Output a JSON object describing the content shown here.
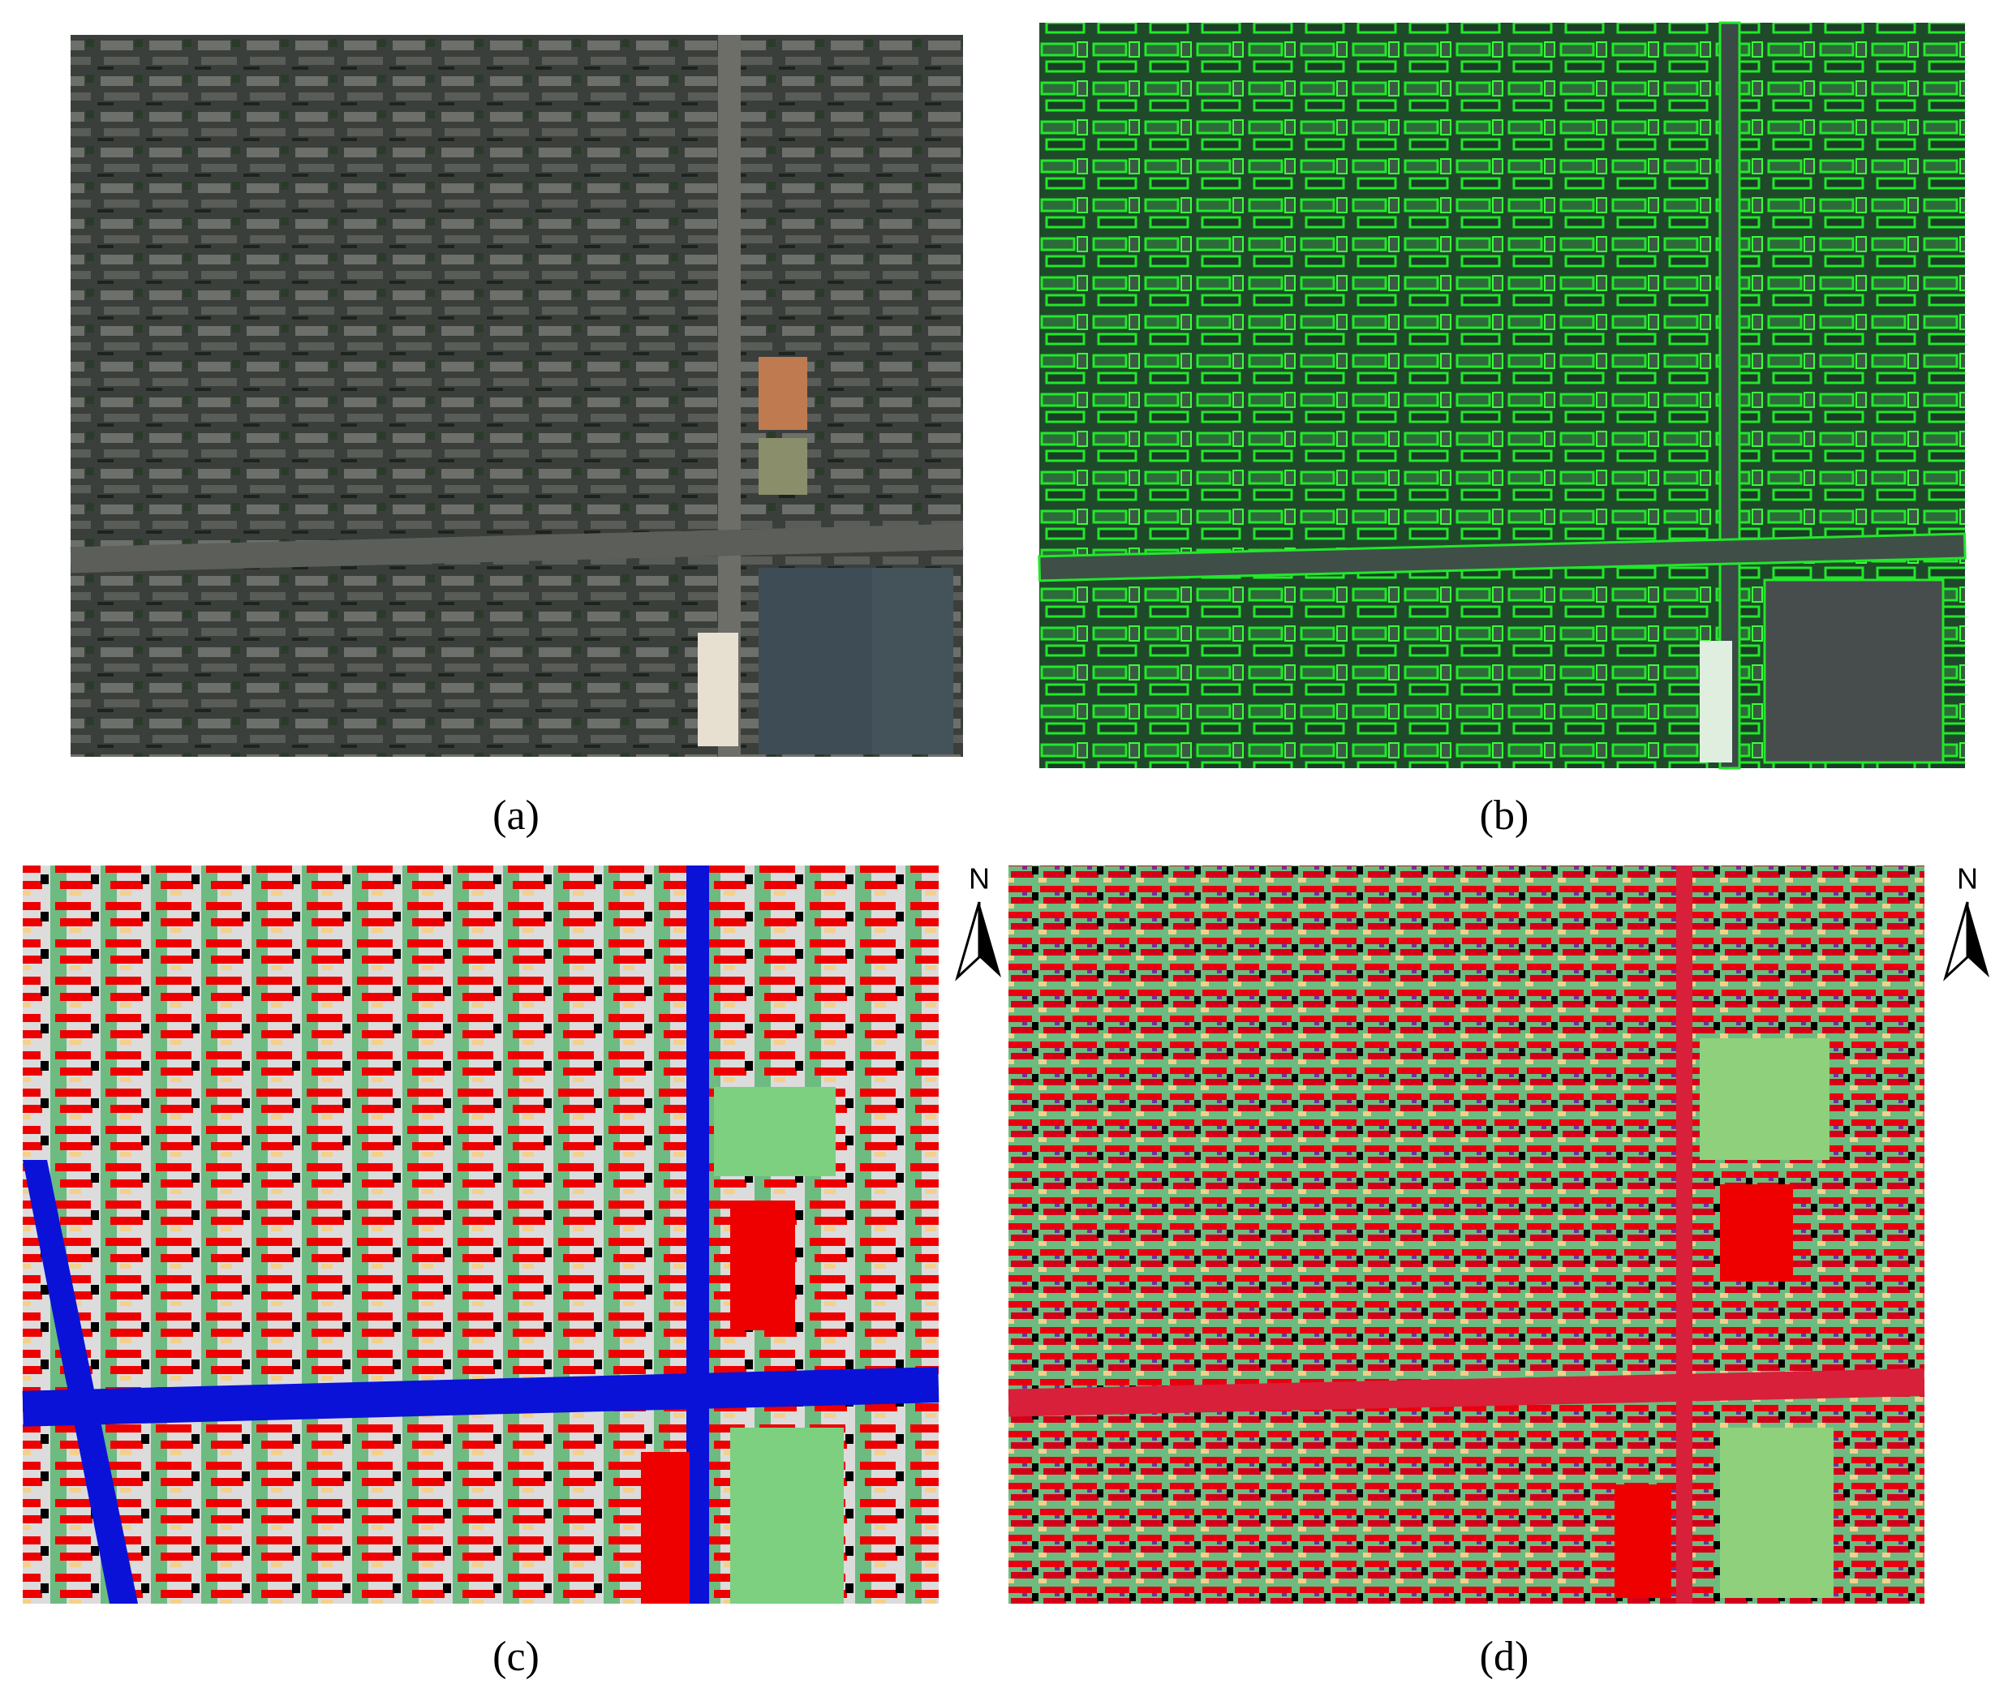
{
  "panels": [
    {
      "label": "(a)"
    },
    {
      "label": "(b)"
    },
    {
      "label": "(c)"
    },
    {
      "label": "(d)"
    }
  ],
  "north_arrows": [
    {
      "label": "N"
    },
    {
      "label": "N"
    }
  ]
}
